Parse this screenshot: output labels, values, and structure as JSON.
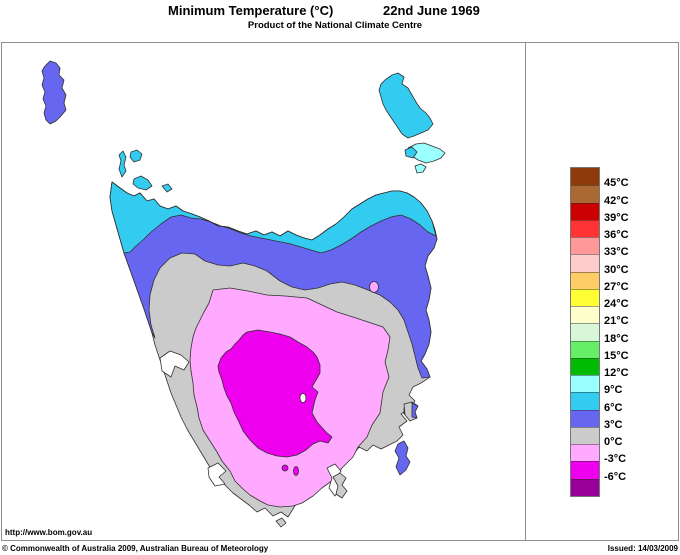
{
  "header": {
    "title": "Minimum Temperature (°C)",
    "date": "22nd June 1969",
    "subtitle": "Product of the National Climate Centre"
  },
  "footer": {
    "url": "http://www.bom.gov.au",
    "copyright": "© Commonwealth of Australia 2009, Australian Bureau of Meteorology",
    "issued": "Issued: 14/03/2009"
  },
  "legend": {
    "entries": [
      {
        "color": "#8f3a0a",
        "label": "45°C"
      },
      {
        "color": "#aa6833",
        "label": "42°C"
      },
      {
        "color": "#cc0000",
        "label": "39°C"
      },
      {
        "color": "#ff3333",
        "label": "36°C"
      },
      {
        "color": "#ff9999",
        "label": "33°C"
      },
      {
        "color": "#ffcccc",
        "label": "30°C"
      },
      {
        "color": "#ffcc66",
        "label": "27°C"
      },
      {
        "color": "#ffff33",
        "label": "24°C"
      },
      {
        "color": "#ffffcc",
        "label": "21°C"
      },
      {
        "color": "#d8f6d8",
        "label": "18°C"
      },
      {
        "color": "#66ee66",
        "label": "15°C"
      },
      {
        "color": "#00bb00",
        "label": "12°C"
      },
      {
        "color": "#99ffff",
        "label": "9°C"
      },
      {
        "color": "#33ccf0",
        "label": "6°C"
      },
      {
        "color": "#6666f0",
        "label": "3°C"
      },
      {
        "color": "#cbcbcb",
        "label": "0°C"
      },
      {
        "color": "#ffaaff",
        "label": "-3°C"
      },
      {
        "color": "#ee00ee",
        "label": "-6°C"
      },
      {
        "color": "#990099",
        "label": null
      }
    ]
  },
  "map_colors": {
    "band_9_12": "#99ffff",
    "band_6_9": "#33ccf0",
    "band_3_6": "#6666f0",
    "band_0_3": "#cbcbcb",
    "band_neg3_0": "#ffaaff",
    "band_neg6_neg3": "#ee00ee",
    "sea": "#ffffff"
  }
}
